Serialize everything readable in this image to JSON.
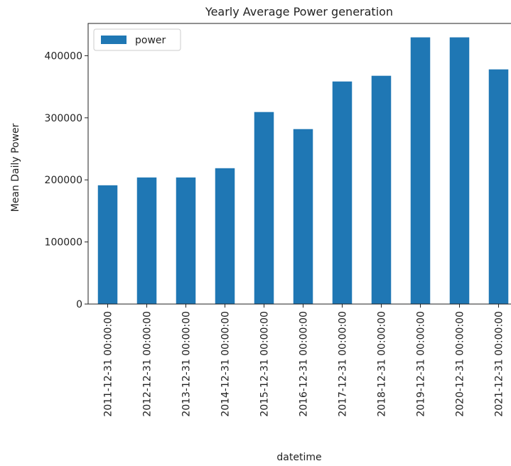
{
  "chart_data": {
    "type": "bar",
    "title": "Yearly Average Power generation",
    "x_label": "datetime",
    "y_label": "Mean Daily Power",
    "categories": [
      "2011-12-31 00:00:00",
      "2012-12-31 00:00:00",
      "2013-12-31 00:00:00",
      "2014-12-31 00:00:00",
      "2015-12-31 00:00:00",
      "2016-12-31 00:00:00",
      "2017-12-31 00:00:00",
      "2018-12-31 00:00:00",
      "2019-12-31 00:00:00",
      "2020-12-31 00:00:00",
      "2021-12-31 00:00:00"
    ],
    "series": [
      {
        "name": "power",
        "color": "#1f77b4",
        "values": [
          191300,
          203900,
          203900,
          218800,
          309300,
          281800,
          358500,
          367700,
          429600,
          429600,
          378000
        ]
      }
    ],
    "ylim": [
      0,
      452000
    ],
    "yticks": [
      0,
      100000,
      200000,
      300000,
      400000
    ],
    "grid": false,
    "legend": "upper-left"
  }
}
